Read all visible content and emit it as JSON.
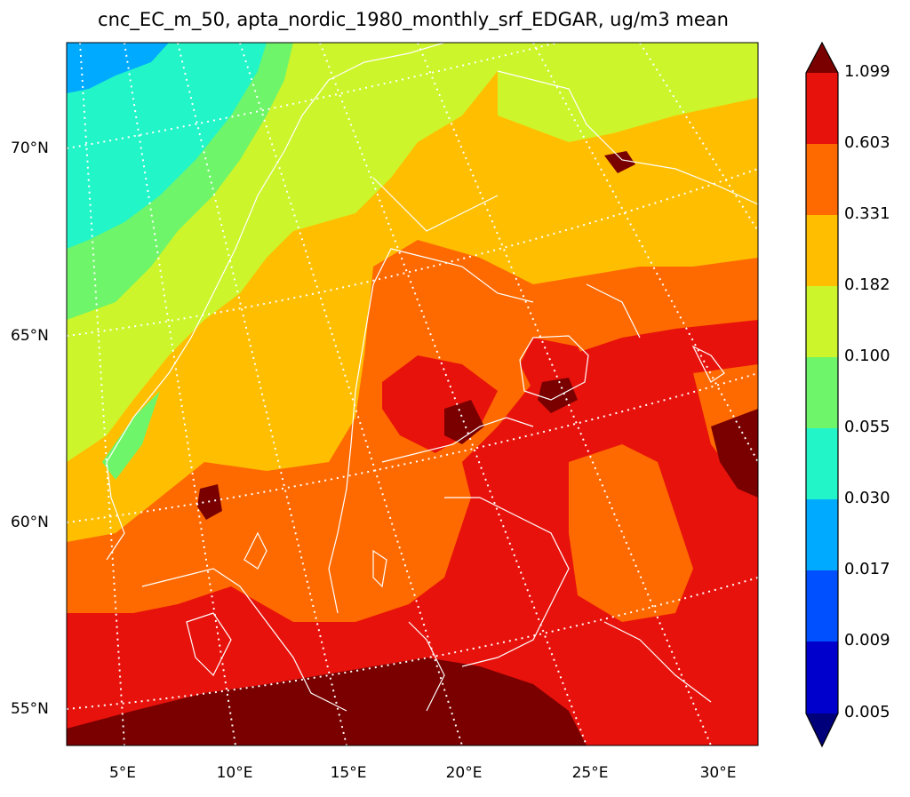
{
  "title": "cnc_EC_m_50, apta_nordic_1980_monthly_srf_EDGAR, ug/m3  mean",
  "lat_labels": [
    "70°N",
    "65°N",
    "60°N",
    "55°N"
  ],
  "lon_labels": [
    "5°E",
    "10°E",
    "15°E",
    "20°E",
    "25°E",
    "30°E"
  ],
  "colorbar": {
    "levels": [
      "1.099",
      "0.603",
      "0.331",
      "0.182",
      "0.100",
      "0.055",
      "0.030",
      "0.017",
      "0.009",
      "0.005"
    ],
    "colors": [
      "#7a0000",
      "#e8120c",
      "#ff6a00",
      "#ffbf00",
      "#cdf52b",
      "#6ff56a",
      "#22f5c8",
      "#00aaff",
      "#0050ff",
      "#0000cc",
      "#00007a"
    ]
  },
  "map_colors": {
    "coast": "#ffffff",
    "grid": "#ffffff"
  }
}
